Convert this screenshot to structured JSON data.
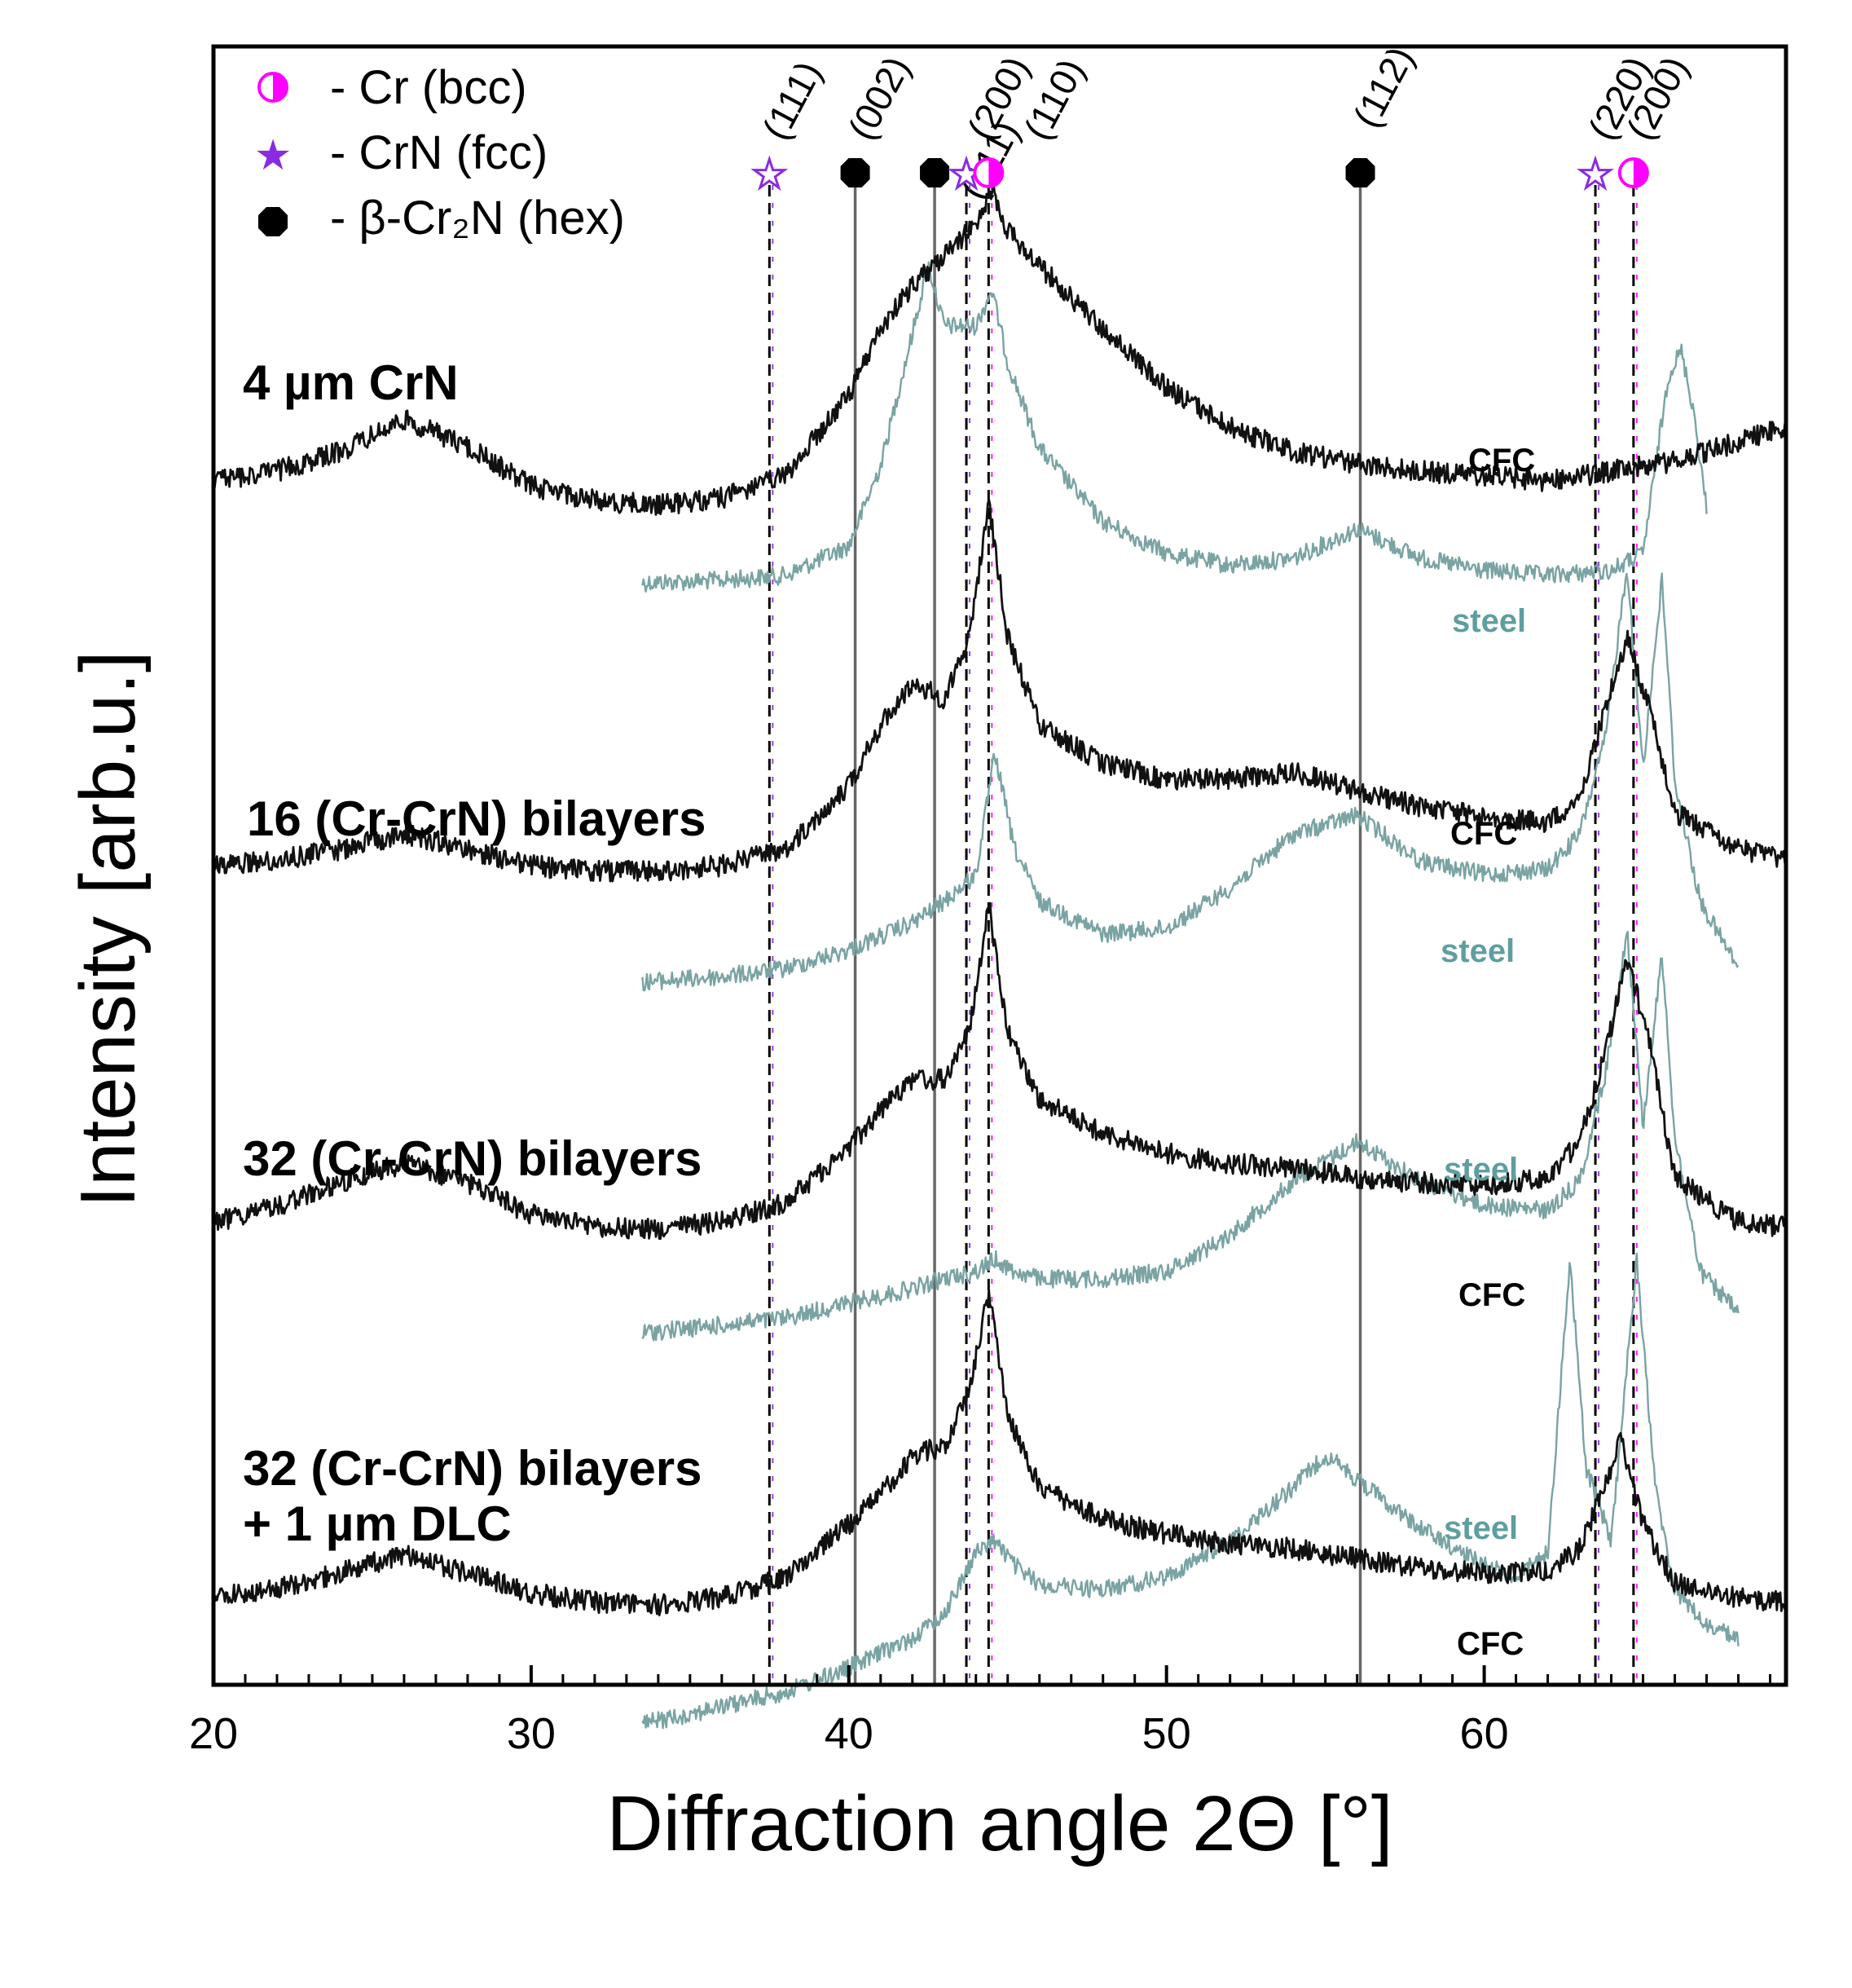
{
  "chart_data": {
    "type": "line",
    "xlabel": "Diffraction angle 2Θ [°]",
    "ylabel": "Intensity [arb.u.]",
    "xlim": [
      20,
      69.5
    ],
    "xticks": [
      20,
      30,
      40,
      50,
      60
    ],
    "x_minor_step": 1,
    "y_ticks_shown": false,
    "colors": {
      "cfc": "#111111",
      "steel": "#7aa3a3",
      "cr": "#ff00ff",
      "crn": "#8a2be2",
      "cr2n": "#000000",
      "steel_text": "#5f9ea0"
    },
    "legend": [
      {
        "symbol": "half-circle",
        "label": "- Cr (bcc)"
      },
      {
        "symbol": "star",
        "label": "- CrN (fcc)"
      },
      {
        "symbol": "octagon",
        "label": "- β-Cr₂N (hex)"
      }
    ],
    "reference_lines": [
      {
        "phase": "CrN",
        "x": 37.5,
        "hkl": "(111)",
        "style": "dashed"
      },
      {
        "phase": "Cr2N",
        "x": 40.2,
        "hkl": "(002)",
        "style": "solid"
      },
      {
        "phase": "Cr2N",
        "x": 42.7,
        "hkl": "(111)",
        "style": "solid"
      },
      {
        "phase": "CrN",
        "x": 43.7,
        "hkl": "(200)",
        "style": "dashed"
      },
      {
        "phase": "Cr",
        "x": 44.4,
        "hkl": "(110)",
        "style": "dashed"
      },
      {
        "phase": "Cr2N",
        "x": 56.1,
        "hkl": "(112)",
        "style": "solid"
      },
      {
        "phase": "CrN",
        "x": 63.5,
        "hkl": "(220)",
        "style": "dashed"
      },
      {
        "phase": "Cr",
        "x": 64.7,
        "hkl": "(200)",
        "style": "dashed"
      }
    ],
    "samples": [
      {
        "label": "4 µm CrN",
        "cfc_label": "CFC",
        "steel_label": "steel",
        "cfc": {
          "x": [
            20,
            22,
            24,
            26,
            28,
            30,
            32,
            34,
            36,
            38,
            40,
            41,
            42,
            43,
            44,
            44.5,
            45,
            46,
            48,
            50,
            52,
            54,
            56,
            58,
            60,
            62,
            64,
            66,
            68,
            69.5
          ],
          "y": [
            0.2,
            0.24,
            0.32,
            0.45,
            0.34,
            0.18,
            0.12,
            0.1,
            0.13,
            0.22,
            0.55,
            0.82,
            1.0,
            1.12,
            1.25,
            1.4,
            1.22,
            1.08,
            0.82,
            0.58,
            0.42,
            0.32,
            0.27,
            0.24,
            0.22,
            0.2,
            0.24,
            0.28,
            0.36,
            0.42
          ]
        },
        "steel": {
          "x": [
            33.5,
            36,
            38,
            40,
            41,
            42,
            42.5,
            43,
            44,
            44.5,
            45,
            46,
            48,
            50,
            52,
            54,
            56,
            58,
            60,
            62,
            64,
            65,
            65.8,
            66.2,
            66.6,
            67
          ],
          "y": [
            0.0,
            0.01,
            0.03,
            0.15,
            0.48,
            1.02,
            1.3,
            1.05,
            1.05,
            1.2,
            0.9,
            0.55,
            0.25,
            0.12,
            0.07,
            0.1,
            0.22,
            0.1,
            0.05,
            0.03,
            0.05,
            0.12,
            0.85,
            0.95,
            0.7,
            0.3
          ]
        }
      },
      {
        "label": "16 (Cr-CrN) bilayers",
        "cfc_label": "CFC",
        "steel_label": "steel",
        "cfc": {
          "x": [
            20,
            22,
            24,
            26,
            28,
            30,
            32,
            34,
            36,
            38,
            40,
            41,
            42,
            43,
            43.8,
            44.4,
            45,
            46,
            48,
            50,
            52,
            54,
            56,
            58,
            60,
            62,
            63,
            63.8,
            64.5,
            65.2,
            66,
            68,
            69.5
          ],
          "y": [
            0.1,
            0.12,
            0.16,
            0.22,
            0.16,
            0.1,
            0.08,
            0.08,
            0.1,
            0.16,
            0.4,
            0.62,
            0.78,
            0.72,
            0.95,
            1.45,
            0.95,
            0.62,
            0.48,
            0.42,
            0.42,
            0.45,
            0.38,
            0.32,
            0.28,
            0.26,
            0.35,
            0.68,
            0.95,
            0.68,
            0.3,
            0.16,
            0.12
          ]
        },
        "steel": {
          "x": [
            33.5,
            36,
            38,
            40,
            42,
            43,
            44,
            44.6,
            45.2,
            46,
            48,
            50,
            52,
            54,
            56,
            58,
            60,
            62,
            63,
            63.8,
            64.5,
            65,
            65.6,
            66,
            66.8,
            68
          ],
          "y": [
            0.0,
            0.02,
            0.05,
            0.12,
            0.22,
            0.3,
            0.4,
            0.85,
            0.5,
            0.3,
            0.18,
            0.2,
            0.35,
            0.55,
            0.62,
            0.45,
            0.4,
            0.42,
            0.55,
            0.9,
            1.55,
            0.8,
            1.5,
            0.75,
            0.3,
            0.05
          ]
        }
      },
      {
        "label": "32 (Cr-CrN) bilayers",
        "cfc_label": "CFC",
        "steel_label": "steel",
        "cfc": {
          "x": [
            20,
            22,
            24,
            26,
            28,
            30,
            32,
            34,
            36,
            38,
            40,
            41,
            42,
            43,
            43.8,
            44.4,
            45,
            46,
            48,
            50,
            52,
            54,
            56,
            58,
            60,
            62,
            63,
            63.8,
            64.5,
            65.2,
            66,
            68,
            69.5
          ],
          "y": [
            0.12,
            0.18,
            0.28,
            0.36,
            0.28,
            0.15,
            0.1,
            0.09,
            0.12,
            0.2,
            0.42,
            0.58,
            0.7,
            0.7,
            0.9,
            1.42,
            0.9,
            0.62,
            0.48,
            0.4,
            0.36,
            0.34,
            0.3,
            0.28,
            0.27,
            0.3,
            0.45,
            0.8,
            1.2,
            0.85,
            0.3,
            0.12,
            0.1
          ]
        },
        "steel": {
          "x": [
            33.5,
            36,
            38,
            40,
            42,
            43,
            44,
            44.6,
            45.2,
            46,
            48,
            50,
            52,
            54,
            56,
            58,
            60,
            62,
            63,
            63.8,
            64.5,
            65,
            65.6,
            66,
            66.8,
            68
          ],
          "y": [
            0.0,
            0.03,
            0.06,
            0.12,
            0.18,
            0.22,
            0.25,
            0.3,
            0.25,
            0.22,
            0.22,
            0.25,
            0.4,
            0.62,
            0.78,
            0.62,
            0.52,
            0.5,
            0.62,
            1.05,
            1.65,
            0.85,
            1.55,
            0.8,
            0.25,
            0.08
          ]
        }
      },
      {
        "label_line1": "32 (Cr-CrN) bilayers",
        "label_line2": "+ 1 µm DLC",
        "cfc_label": "CFC",
        "steel_label": "steel",
        "cfc": {
          "x": [
            20,
            22,
            24,
            26,
            28,
            30,
            32,
            34,
            36,
            38,
            40,
            41,
            42,
            43,
            43.8,
            44.4,
            45,
            46,
            48,
            50,
            52,
            54,
            56,
            58,
            60,
            62,
            63,
            63.8,
            64.3,
            65,
            66,
            68,
            69.5
          ],
          "y": [
            0.1,
            0.14,
            0.2,
            0.28,
            0.2,
            0.12,
            0.08,
            0.07,
            0.1,
            0.18,
            0.4,
            0.52,
            0.68,
            0.72,
            0.95,
            1.35,
            0.85,
            0.55,
            0.42,
            0.36,
            0.32,
            0.3,
            0.26,
            0.22,
            0.2,
            0.2,
            0.3,
            0.55,
            0.75,
            0.4,
            0.16,
            0.1,
            0.08
          ]
        },
        "steel": {
          "x": [
            33.5,
            36,
            38,
            40,
            42,
            43,
            44,
            44.6,
            45.2,
            46,
            48,
            50,
            52,
            54,
            55,
            56,
            58,
            60,
            61,
            62,
            62.7,
            63.2,
            64,
            64.8,
            65.4,
            66,
            67,
            68
          ],
          "y": [
            -0.35,
            -0.28,
            -0.22,
            -0.12,
            0.0,
            0.1,
            0.35,
            0.4,
            0.3,
            0.22,
            0.2,
            0.25,
            0.4,
            0.62,
            0.75,
            0.65,
            0.45,
            0.3,
            0.25,
            0.35,
            1.55,
            0.7,
            0.4,
            1.55,
            0.6,
            0.2,
            0.05,
            0.0
          ]
        }
      }
    ]
  }
}
